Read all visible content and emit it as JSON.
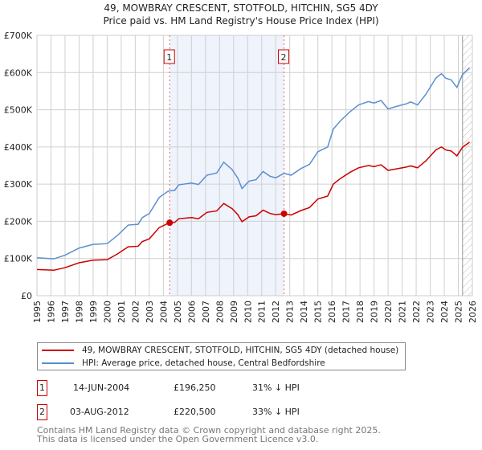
{
  "title": "49, MOWBRAY CRESCENT, STOTFOLD, HITCHIN, SG5 4DY",
  "subtitle": "Price paid vs. HM Land Registry's House Price Index (HPI)",
  "legend": {
    "property": "49, MOWBRAY CRESCENT, STOTFOLD, HITCHIN, SG5 4DY (detached house)",
    "hpi": "HPI: Average price, detached house, Central Bedfordshire"
  },
  "transactions": [
    {
      "num": "1",
      "date": "14-JUN-2004",
      "price": "£196,250",
      "delta": "31% ↓ HPI"
    },
    {
      "num": "2",
      "date": "03-AUG-2012",
      "price": "£220,500",
      "delta": "33% ↓ HPI"
    }
  ],
  "footer": [
    "Contains HM Land Registry data © Crown copyright and database right 2025.",
    "This data is licensed under the Open Government Licence v3.0."
  ],
  "colors": {
    "property": "#cc0000",
    "hpi": "#5b8fd0",
    "shade": "#eef3fc"
  },
  "chart_data": {
    "type": "line",
    "xlim": [
      1995,
      2026
    ],
    "ylim": [
      0,
      700000
    ],
    "yticks": [
      0,
      100000,
      200000,
      300000,
      400000,
      500000,
      600000,
      700000
    ],
    "ytick_labels": [
      "£0",
      "£100K",
      "£200K",
      "£300K",
      "£400K",
      "£500K",
      "£600K",
      "£700K"
    ],
    "xticks": [
      1995,
      1996,
      1997,
      1998,
      1999,
      2000,
      2001,
      2002,
      2003,
      2004,
      2005,
      2006,
      2007,
      2008,
      2009,
      2010,
      2011,
      2012,
      2013,
      2014,
      2015,
      2016,
      2017,
      2018,
      2019,
      2020,
      2021,
      2022,
      2023,
      2024,
      2025,
      2026
    ],
    "shaded_range": [
      2004.45,
      2012.59
    ],
    "forecast_hatch_from": 2025.3,
    "markers": [
      {
        "label": "1",
        "x": 2004.45,
        "y": 196250
      },
      {
        "label": "2",
        "x": 2012.59,
        "y": 220500
      }
    ],
    "x": [
      1995,
      1996.2,
      1997,
      1998,
      1999,
      2000,
      2000.7,
      2001.5,
      2002.2,
      2002.5,
      2003,
      2003.7,
      2004.3,
      2004.45,
      2004.8,
      2005.1,
      2006,
      2006.5,
      2007.1,
      2007.8,
      2008.3,
      2008.9,
      2009.3,
      2009.6,
      2010.1,
      2010.6,
      2011.1,
      2011.6,
      2012,
      2012.59,
      2013.1,
      2013.8,
      2014.4,
      2015,
      2015.7,
      2016.1,
      2016.6,
      2017.3,
      2017.9,
      2018.6,
      2019,
      2019.5,
      2020,
      2020.6,
      2021.3,
      2021.6,
      2022.1,
      2022.7,
      2023.4,
      2023.8,
      2024.1,
      2024.5,
      2024.9,
      2025.3,
      2025.8
    ],
    "series": [
      {
        "name": "49, MOWBRAY CRESCENT, STOTFOLD, HITCHIN, SG5 4DY (detached house)",
        "values": [
          70500,
          68500,
          75500,
          88500,
          95500,
          97000,
          111500,
          131500,
          133000,
          145500,
          153000,
          183000,
          194000,
          196250,
          197000,
          207000,
          210000,
          207000,
          224000,
          228000,
          248000,
          234000,
          218000,
          199000,
          212000,
          215000,
          230000,
          221000,
          218000,
          220500,
          217000,
          229000,
          237000,
          260000,
          268000,
          300000,
          315000,
          332000,
          344000,
          350000,
          347000,
          352000,
          337000,
          341000,
          346000,
          349000,
          344000,
          363000,
          392000,
          400000,
          392000,
          389000,
          376000,
          399000,
          413000
        ]
      },
      {
        "name": "HPI: Average price, detached house, Central Bedfordshire",
        "values": [
          102000,
          99000,
          109000,
          128000,
          138000,
          140000,
          161000,
          190000,
          192000,
          210000,
          221000,
          264000,
          280000,
          282000,
          283000,
          298000,
          303000,
          299000,
          324000,
          330000,
          359000,
          339000,
          316000,
          288000,
          308000,
          312000,
          334000,
          321000,
          317000,
          329000,
          324000,
          342000,
          353000,
          387000,
          400000,
          448000,
          470000,
          495000,
          513000,
          522000,
          518000,
          525000,
          502000,
          509000,
          516000,
          521000,
          513000,
          542000,
          585000,
          597000,
          585000,
          580000,
          560000,
          595000,
          613000
        ]
      }
    ]
  }
}
